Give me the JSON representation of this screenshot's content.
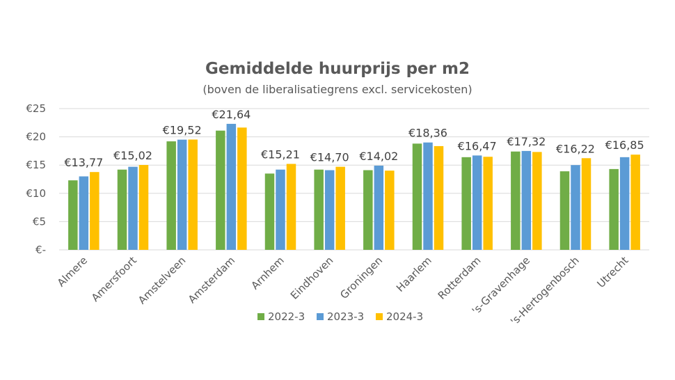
{
  "chart_data": {
    "type": "bar",
    "title": "Gemiddelde huurprijs per m2",
    "subtitle": "(boven de liberalisatiegrens excl. servicekosten)",
    "categories": [
      "Almere",
      "Amersfoort",
      "Amstelveen",
      "Amsterdam",
      "Arnhem",
      "Eindhoven",
      "Groningen",
      "Haarlem",
      "Rotterdam",
      "'s-Gravenhage",
      "'s-Hertogenbosch",
      "Utrecht"
    ],
    "series": [
      {
        "name": "2022-3",
        "color": "#70ad47",
        "values": [
          12.3,
          14.2,
          19.2,
          21.1,
          13.5,
          14.2,
          14.1,
          18.8,
          16.4,
          17.4,
          13.9,
          14.3
        ]
      },
      {
        "name": "2023-3",
        "color": "#5b9bd5",
        "values": [
          13.0,
          14.7,
          19.5,
          22.3,
          14.2,
          14.1,
          14.9,
          19.0,
          16.7,
          17.5,
          15.0,
          16.4
        ]
      },
      {
        "name": "2024-3",
        "color": "#ffc000",
        "values": [
          13.77,
          15.02,
          19.52,
          21.64,
          15.21,
          14.7,
          14.02,
          18.36,
          16.47,
          17.32,
          16.22,
          16.85
        ]
      }
    ],
    "data_labels": [
      "€13,77",
      "€15,02",
      "€19,52",
      "€21,64",
      "€15,21",
      "€14,70",
      "€14,02",
      "€18,36",
      "€16,47",
      "€17,32",
      "€16,22",
      "€16,85"
    ],
    "y_ticks": [
      {
        "value": 0,
        "label": "€-"
      },
      {
        "value": 5,
        "label": "€5"
      },
      {
        "value": 10,
        "label": "€10"
      },
      {
        "value": 15,
        "label": "€15"
      },
      {
        "value": 20,
        "label": "€20"
      },
      {
        "value": 25,
        "label": "€25"
      }
    ],
    "ylim": [
      0,
      25
    ],
    "grid": true,
    "legend_position": "bottom",
    "gridline_color": "#d9d9d9"
  }
}
